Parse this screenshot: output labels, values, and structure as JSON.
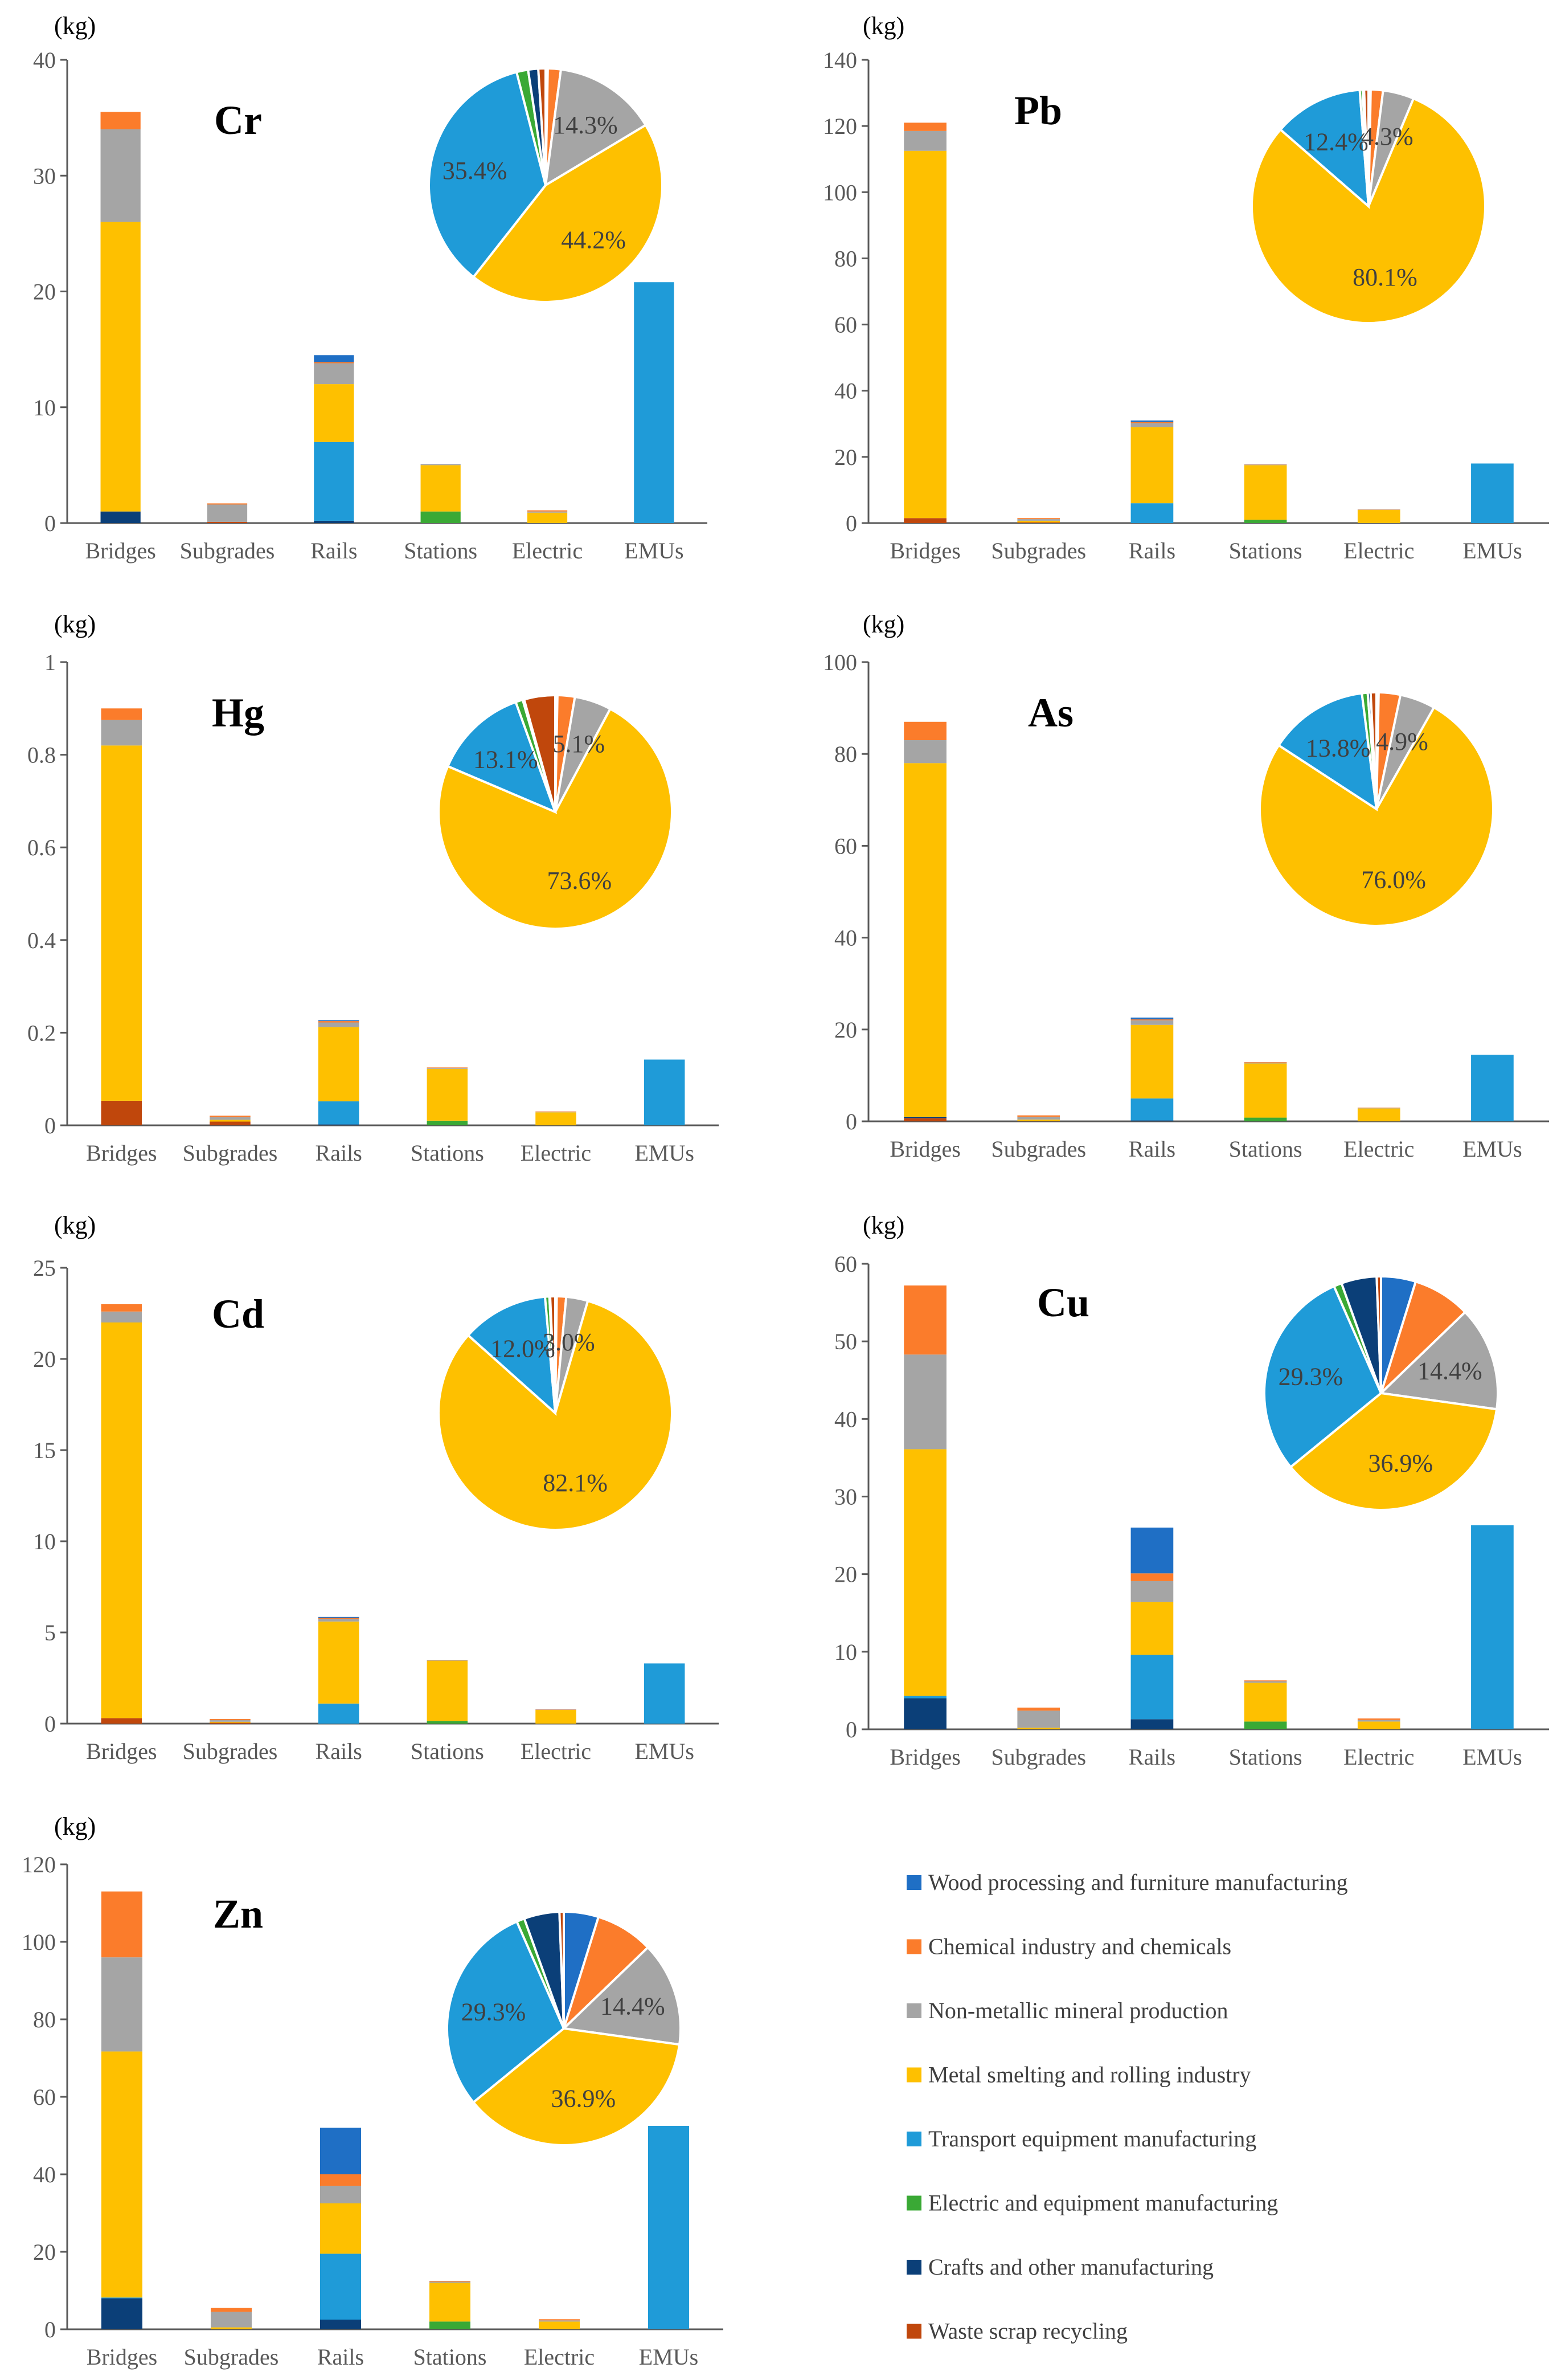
{
  "colors": {
    "wood": "#1f6fc5",
    "chemical": "#fb7c2b",
    "nonmetallic": "#a5a5a5",
    "metal": "#fec000",
    "transport": "#1f9bd8",
    "electric": "#3aa935",
    "crafts": "#0b3f78",
    "waste": "#c0470c",
    "axis": "#595959"
  },
  "legend": [
    {
      "key": "wood",
      "label": "Wood processing and furniture manufacturing"
    },
    {
      "key": "chemical",
      "label": "Chemical industry and chemicals"
    },
    {
      "key": "nonmetallic",
      "label": "Non-metallic mineral production"
    },
    {
      "key": "metal",
      "label": "Metal smelting and rolling industry"
    },
    {
      "key": "transport",
      "label": "Transport equipment manufacturing"
    },
    {
      "key": "electric",
      "label": "Electric and equipment manufacturing"
    },
    {
      "key": "crafts",
      "label": "Crafts and other manufacturing"
    },
    {
      "key": "waste",
      "label": "Waste scrap recycling"
    }
  ],
  "chart_data": [
    {
      "type": "bar",
      "stacked": true,
      "title": "Cr",
      "unit": "(kg)",
      "categories": [
        "Bridges",
        "Subgrades",
        "Rails",
        "Stations",
        "Electric",
        "EMUs"
      ],
      "ylim": [
        0,
        40
      ],
      "yticks": [
        0,
        10,
        20,
        30,
        40
      ],
      "stack_order": [
        "waste",
        "crafts",
        "electric",
        "transport",
        "metal",
        "nonmetallic",
        "chemical",
        "wood"
      ],
      "series": [
        {
          "key": "waste",
          "values": [
            0,
            0.1,
            0,
            0,
            0,
            0
          ]
        },
        {
          "key": "crafts",
          "values": [
            1.0,
            0,
            0.2,
            0,
            0,
            0
          ]
        },
        {
          "key": "electric",
          "values": [
            0,
            0,
            0,
            1.0,
            0,
            0
          ]
        },
        {
          "key": "transport",
          "values": [
            0,
            0,
            6.8,
            0,
            0,
            20.8
          ]
        },
        {
          "key": "metal",
          "values": [
            25.0,
            0,
            5.0,
            4.0,
            0.9,
            0
          ]
        },
        {
          "key": "nonmetallic",
          "values": [
            8.0,
            1.5,
            1.8,
            0.1,
            0.1,
            0
          ]
        },
        {
          "key": "chemical",
          "values": [
            1.5,
            0.1,
            0.1,
            0,
            0.1,
            0
          ]
        },
        {
          "key": "wood",
          "values": [
            0,
            0,
            0.6,
            0,
            0,
            0
          ]
        }
      ],
      "pie": {
        "order": [
          "wood",
          "chemical",
          "nonmetallic",
          "metal",
          "transport",
          "electric",
          "crafts",
          "waste"
        ],
        "values": [
          0.3,
          1.8,
          14.3,
          44.2,
          35.4,
          1.6,
          1.4,
          1.0
        ],
        "labels": [
          {
            "key": "nonmetallic",
            "text": "14.3%"
          },
          {
            "key": "metal",
            "text": "44.2%"
          },
          {
            "key": "transport",
            "text": "35.4%"
          }
        ]
      }
    },
    {
      "type": "bar",
      "stacked": true,
      "title": "Pb",
      "unit": "(kg)",
      "categories": [
        "Bridges",
        "Subgrades",
        "Rails",
        "Stations",
        "Electric",
        "EMUs"
      ],
      "ylim": [
        0,
        140
      ],
      "yticks": [
        0,
        20,
        40,
        60,
        80,
        100,
        120,
        140
      ],
      "stack_order": [
        "waste",
        "crafts",
        "electric",
        "transport",
        "metal",
        "nonmetallic",
        "chemical",
        "wood"
      ],
      "series": [
        {
          "key": "waste",
          "values": [
            1.5,
            0.2,
            0,
            0,
            0,
            0
          ]
        },
        {
          "key": "crafts",
          "values": [
            0,
            0,
            0,
            0,
            0,
            0
          ]
        },
        {
          "key": "electric",
          "values": [
            0,
            0,
            0,
            1.0,
            0,
            0
          ]
        },
        {
          "key": "transport",
          "values": [
            0,
            0,
            6.0,
            0,
            0,
            18.0
          ]
        },
        {
          "key": "metal",
          "values": [
            111.0,
            0.5,
            23.0,
            16.5,
            4.0,
            0
          ]
        },
        {
          "key": "nonmetallic",
          "values": [
            6.0,
            0.5,
            1.2,
            0.2,
            0.1,
            0
          ]
        },
        {
          "key": "chemical",
          "values": [
            2.5,
            0.3,
            0.3,
            0.1,
            0.1,
            0
          ]
        },
        {
          "key": "wood",
          "values": [
            0,
            0,
            0.5,
            0,
            0,
            0
          ]
        }
      ],
      "pie": {
        "order": [
          "wood",
          "chemical",
          "nonmetallic",
          "metal",
          "transport",
          "electric",
          "crafts",
          "waste"
        ],
        "values": [
          0.3,
          1.7,
          4.3,
          80.1,
          12.4,
          0.4,
          0.2,
          0.6
        ],
        "labels": [
          {
            "key": "nonmetallic",
            "text": "4.3%"
          },
          {
            "key": "metal",
            "text": "80.1%"
          },
          {
            "key": "transport",
            "text": "12.4%"
          }
        ]
      }
    },
    {
      "type": "bar",
      "stacked": true,
      "title": "Hg",
      "unit": "(kg)",
      "categories": [
        "Bridges",
        "Subgrades",
        "Rails",
        "Stations",
        "Electric",
        "EMUs"
      ],
      "ylim": [
        0,
        1
      ],
      "yticks": [
        0,
        0.2,
        0.4,
        0.6,
        0.8,
        1
      ],
      "stack_order": [
        "waste",
        "crafts",
        "electric",
        "transport",
        "metal",
        "nonmetallic",
        "chemical",
        "wood"
      ],
      "series": [
        {
          "key": "waste",
          "values": [
            0.053,
            0.008,
            0,
            0,
            0,
            0
          ]
        },
        {
          "key": "crafts",
          "values": [
            0,
            0,
            0.002,
            0,
            0,
            0
          ]
        },
        {
          "key": "electric",
          "values": [
            0,
            0,
            0,
            0.01,
            0,
            0
          ]
        },
        {
          "key": "transport",
          "values": [
            0,
            0,
            0.05,
            0,
            0,
            0.142
          ]
        },
        {
          "key": "metal",
          "values": [
            0.767,
            0.004,
            0.16,
            0.112,
            0.028,
            0
          ]
        },
        {
          "key": "nonmetallic",
          "values": [
            0.055,
            0.006,
            0.01,
            0.002,
            0.001,
            0
          ]
        },
        {
          "key": "chemical",
          "values": [
            0.025,
            0.003,
            0.003,
            0.001,
            0.001,
            0
          ]
        },
        {
          "key": "wood",
          "values": [
            0,
            0,
            0.002,
            0,
            0,
            0
          ]
        }
      ],
      "pie": {
        "order": [
          "wood",
          "chemical",
          "nonmetallic",
          "metal",
          "transport",
          "electric",
          "crafts",
          "waste"
        ],
        "values": [
          0.3,
          2.4,
          5.1,
          73.6,
          13.1,
          1.0,
          0.2,
          4.3
        ],
        "labels": [
          {
            "key": "nonmetallic",
            "text": "5.1%"
          },
          {
            "key": "metal",
            "text": "73.6%"
          },
          {
            "key": "transport",
            "text": "13.1%"
          }
        ]
      }
    },
    {
      "type": "bar",
      "stacked": true,
      "title": "As",
      "unit": "(kg)",
      "categories": [
        "Bridges",
        "Subgrades",
        "Rails",
        "Stations",
        "Electric",
        "EMUs"
      ],
      "ylim": [
        0,
        100
      ],
      "yticks": [
        0,
        20,
        40,
        60,
        80,
        100
      ],
      "stack_order": [
        "waste",
        "crafts",
        "electric",
        "transport",
        "metal",
        "nonmetallic",
        "chemical",
        "wood"
      ],
      "series": [
        {
          "key": "waste",
          "values": [
            0.7,
            0.1,
            0,
            0,
            0,
            0
          ]
        },
        {
          "key": "crafts",
          "values": [
            0.3,
            0,
            0.2,
            0,
            0,
            0
          ]
        },
        {
          "key": "electric",
          "values": [
            0,
            0,
            0,
            0.8,
            0,
            0
          ]
        },
        {
          "key": "transport",
          "values": [
            0,
            0,
            4.8,
            0,
            0,
            14.5
          ]
        },
        {
          "key": "metal",
          "values": [
            77.0,
            0.3,
            16.0,
            11.8,
            2.8,
            0
          ]
        },
        {
          "key": "nonmetallic",
          "values": [
            5.0,
            0.6,
            1.0,
            0.2,
            0.1,
            0
          ]
        },
        {
          "key": "chemical",
          "values": [
            4.0,
            0.3,
            0.2,
            0.1,
            0.1,
            0
          ]
        },
        {
          "key": "wood",
          "values": [
            0,
            0,
            0.4,
            0,
            0,
            0
          ]
        }
      ],
      "pie": {
        "order": [
          "wood",
          "chemical",
          "nonmetallic",
          "metal",
          "transport",
          "electric",
          "crafts",
          "waste"
        ],
        "values": [
          0.3,
          3.0,
          4.9,
          76.0,
          13.8,
          0.8,
          0.4,
          0.8
        ],
        "labels": [
          {
            "key": "nonmetallic",
            "text": "4.9%"
          },
          {
            "key": "metal",
            "text": "76.0%"
          },
          {
            "key": "transport",
            "text": "13.8%"
          }
        ]
      }
    },
    {
      "type": "bar",
      "stacked": true,
      "title": "Cd",
      "unit": "(kg)",
      "categories": [
        "Bridges",
        "Subgrades",
        "Rails",
        "Stations",
        "Electric",
        "EMUs"
      ],
      "ylim": [
        0,
        25
      ],
      "yticks": [
        0,
        5,
        10,
        15,
        20,
        25
      ],
      "stack_order": [
        "waste",
        "crafts",
        "electric",
        "transport",
        "metal",
        "nonmetallic",
        "chemical",
        "wood"
      ],
      "series": [
        {
          "key": "waste",
          "values": [
            0.3,
            0.05,
            0,
            0,
            0,
            0
          ]
        },
        {
          "key": "crafts",
          "values": [
            0,
            0,
            0,
            0,
            0,
            0
          ]
        },
        {
          "key": "electric",
          "values": [
            0,
            0,
            0,
            0.15,
            0,
            0
          ]
        },
        {
          "key": "transport",
          "values": [
            0,
            0,
            1.1,
            0,
            0,
            3.3
          ]
        },
        {
          "key": "metal",
          "values": [
            21.7,
            0.05,
            4.5,
            3.3,
            0.75,
            0
          ]
        },
        {
          "key": "nonmetallic",
          "values": [
            0.6,
            0.1,
            0.15,
            0.03,
            0.02,
            0
          ]
        },
        {
          "key": "chemical",
          "values": [
            0.4,
            0.05,
            0.05,
            0.02,
            0.02,
            0
          ]
        },
        {
          "key": "wood",
          "values": [
            0,
            0,
            0.05,
            0,
            0,
            0
          ]
        }
      ],
      "pie": {
        "order": [
          "wood",
          "chemical",
          "nonmetallic",
          "metal",
          "transport",
          "electric",
          "crafts",
          "waste"
        ],
        "values": [
          0.2,
          1.3,
          3.0,
          82.1,
          12.0,
          0.6,
          0.1,
          0.7
        ],
        "labels": [
          {
            "key": "nonmetallic",
            "text": "3.0%"
          },
          {
            "key": "metal",
            "text": "82.1%"
          },
          {
            "key": "transport",
            "text": "12.0%"
          }
        ]
      }
    },
    {
      "type": "bar",
      "stacked": true,
      "title": "Cu",
      "unit": "(kg)",
      "categories": [
        "Bridges",
        "Subgrades",
        "Rails",
        "Stations",
        "Electric",
        "EMUs"
      ],
      "ylim": [
        0,
        60
      ],
      "yticks": [
        0,
        10,
        20,
        30,
        40,
        50,
        60
      ],
      "stack_order": [
        "waste",
        "crafts",
        "electric",
        "transport",
        "metal",
        "nonmetallic",
        "chemical",
        "wood"
      ],
      "series": [
        {
          "key": "waste",
          "values": [
            0,
            0,
            0,
            0,
            0,
            0
          ]
        },
        {
          "key": "crafts",
          "values": [
            4.0,
            0,
            1.3,
            0,
            0,
            0
          ]
        },
        {
          "key": "electric",
          "values": [
            0,
            0,
            0,
            1.0,
            0,
            0
          ]
        },
        {
          "key": "transport",
          "values": [
            0.3,
            0,
            8.3,
            0,
            0,
            26.3
          ]
        },
        {
          "key": "metal",
          "values": [
            31.8,
            0.2,
            6.8,
            5.0,
            1.0,
            0
          ]
        },
        {
          "key": "nonmetallic",
          "values": [
            12.2,
            2.2,
            2.7,
            0.2,
            0.2,
            0
          ]
        },
        {
          "key": "chemical",
          "values": [
            8.9,
            0.4,
            1.0,
            0.1,
            0.2,
            0
          ]
        },
        {
          "key": "wood",
          "values": [
            0,
            0,
            5.9,
            0,
            0,
            0
          ]
        }
      ],
      "pie": {
        "order": [
          "wood",
          "chemical",
          "nonmetallic",
          "metal",
          "transport",
          "electric",
          "crafts",
          "waste"
        ],
        "values": [
          4.8,
          8.0,
          14.4,
          36.9,
          29.3,
          1.1,
          4.9,
          0.6
        ],
        "labels": [
          {
            "key": "nonmetallic",
            "text": "14.4%"
          },
          {
            "key": "metal",
            "text": "36.9%"
          },
          {
            "key": "transport",
            "text": "29.3%"
          }
        ]
      }
    },
    {
      "type": "bar",
      "stacked": true,
      "title": "Zn",
      "unit": "(kg)",
      "categories": [
        "Bridges",
        "Subgrades",
        "Rails",
        "Stations",
        "Electric",
        "EMUs"
      ],
      "ylim": [
        0,
        120
      ],
      "yticks": [
        0,
        20,
        40,
        60,
        80,
        100,
        120
      ],
      "stack_order": [
        "waste",
        "crafts",
        "electric",
        "transport",
        "metal",
        "nonmetallic",
        "chemical",
        "wood"
      ],
      "series": [
        {
          "key": "waste",
          "values": [
            0,
            0,
            0,
            0,
            0,
            0
          ]
        },
        {
          "key": "crafts",
          "values": [
            8.0,
            0,
            2.5,
            0,
            0,
            0
          ]
        },
        {
          "key": "electric",
          "values": [
            0,
            0,
            0,
            2.0,
            0,
            0
          ]
        },
        {
          "key": "transport",
          "values": [
            0.2,
            0,
            17.0,
            0,
            0,
            52.5
          ]
        },
        {
          "key": "metal",
          "values": [
            63.5,
            0.5,
            13.0,
            10.0,
            2.0,
            0
          ]
        },
        {
          "key": "nonmetallic",
          "values": [
            24.3,
            4.0,
            4.5,
            0.3,
            0.3,
            0
          ]
        },
        {
          "key": "chemical",
          "values": [
            17.0,
            1.0,
            3.0,
            0.2,
            0.3,
            0
          ]
        },
        {
          "key": "wood",
          "values": [
            0,
            0,
            12.0,
            0,
            0,
            0
          ]
        }
      ],
      "pie": {
        "order": [
          "wood",
          "chemical",
          "nonmetallic",
          "metal",
          "transport",
          "electric",
          "crafts",
          "waste"
        ],
        "values": [
          4.8,
          8.0,
          14.4,
          36.9,
          29.3,
          1.1,
          4.9,
          0.6
        ],
        "labels": [
          {
            "key": "nonmetallic",
            "text": "14.4%"
          },
          {
            "key": "metal",
            "text": "36.9%"
          },
          {
            "key": "transport",
            "text": "29.3%"
          }
        ]
      }
    }
  ]
}
